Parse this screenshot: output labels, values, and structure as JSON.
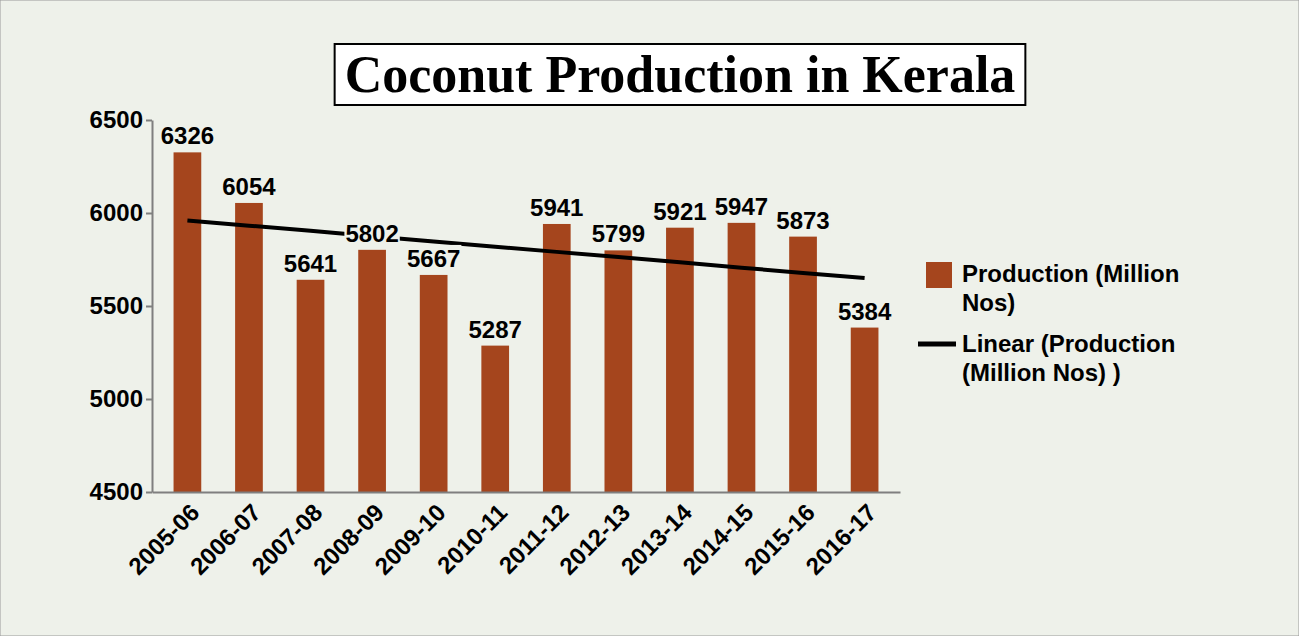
{
  "chart_data": {
    "type": "bar",
    "title": "Coconut Production in Kerala",
    "categories": [
      "2005-06",
      "2006-07",
      "2007-08",
      "2008-09",
      "2009-10",
      "2010-11",
      "2011-12",
      "2012-13",
      "2013-14",
      "2014-15",
      "2015-16",
      "2016-17"
    ],
    "series": [
      {
        "name": "Production (Million Nos)",
        "type": "bar",
        "color": "#a5451d",
        "values": [
          6326,
          6054,
          5641,
          5802,
          5667,
          5287,
          5941,
          5799,
          5921,
          5947,
          5873,
          5384
        ]
      },
      {
        "name": "Linear (Production (Million Nos) )",
        "type": "line",
        "color": "#000000",
        "line_style": "solid",
        "values": [
          5960,
          5932,
          5904,
          5875,
          5847,
          5819,
          5791,
          5763,
          5735,
          5706,
          5678,
          5650
        ]
      }
    ],
    "ylim": [
      4500,
      6500
    ],
    "yticks": [
      4500,
      5000,
      5500,
      6000,
      6500
    ],
    "grid": false,
    "legend": "right",
    "data_labels": true
  }
}
